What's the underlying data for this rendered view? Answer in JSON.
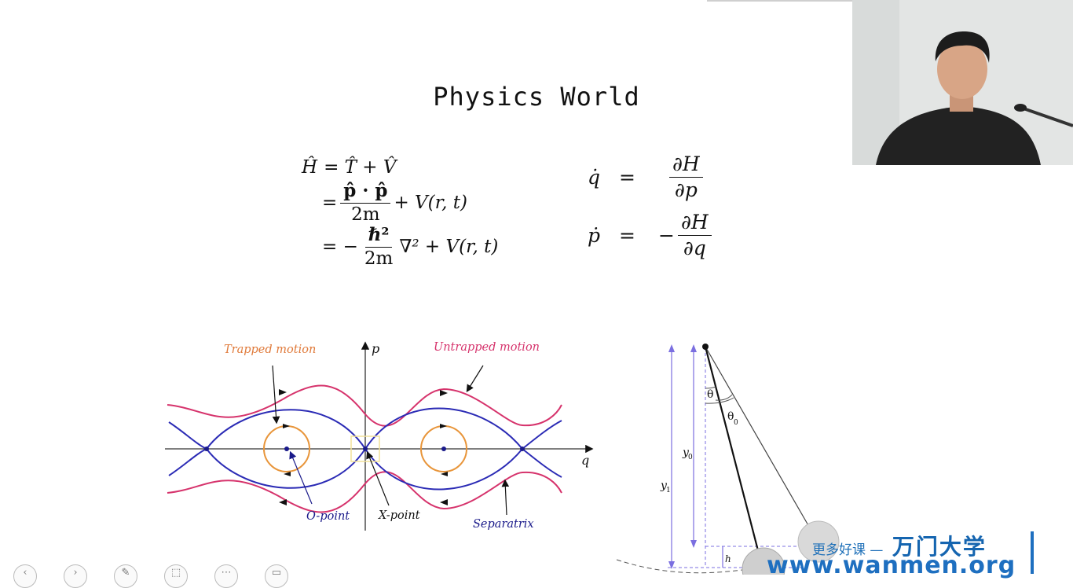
{
  "slide": {
    "title": "Physics World"
  },
  "equations": {
    "hamiltonian": {
      "line1_lhs": "Ĥ",
      "line1_rhs": "= T̂ + V̂",
      "line2_eq": "=",
      "line2_num": "p̂ · p̂",
      "line2_den": "2m",
      "line2_tail": "+ V(r, t)",
      "line3_eq": "= −",
      "line3_num": "ℏ²",
      "line3_den": "2m",
      "line3_tail": "∇² + V(r, t)"
    },
    "hamilton": {
      "qdot": "q̇",
      "pdot": "ṗ",
      "eq": "=",
      "minus": "−",
      "num": "∂H",
      "den_p": "∂p",
      "den_q": "∂q"
    }
  },
  "phase_diagram": {
    "label_trapped": "Trapped motion",
    "label_untrapped": "Untrapped motion",
    "axis_p": "p",
    "axis_q": "q",
    "label_opoint": "O-point",
    "label_xpoint": "X-point",
    "label_separatrix": "Separatrix",
    "colors": {
      "untrapped": "#d6336c",
      "separatrix": "#2b2bb5",
      "trapped": "#e8953a",
      "trapped_label": "#e07a3a"
    }
  },
  "pendulum": {
    "label_theta": "θ",
    "label_theta0": "θ",
    "sub_0": "0",
    "sub_1": "1",
    "label_y": "y",
    "label_h": "h",
    "colors": {
      "dimension": "#7b6fe0"
    }
  },
  "watermark": {
    "tagline": "更多好课 —",
    "brand_cn": "万门大学",
    "url": "www.wanmen.org"
  },
  "toolbar": {
    "icons": [
      "back-icon",
      "forward-icon",
      "pen-icon",
      "screen-icon",
      "more-icon",
      "slides-icon"
    ]
  }
}
